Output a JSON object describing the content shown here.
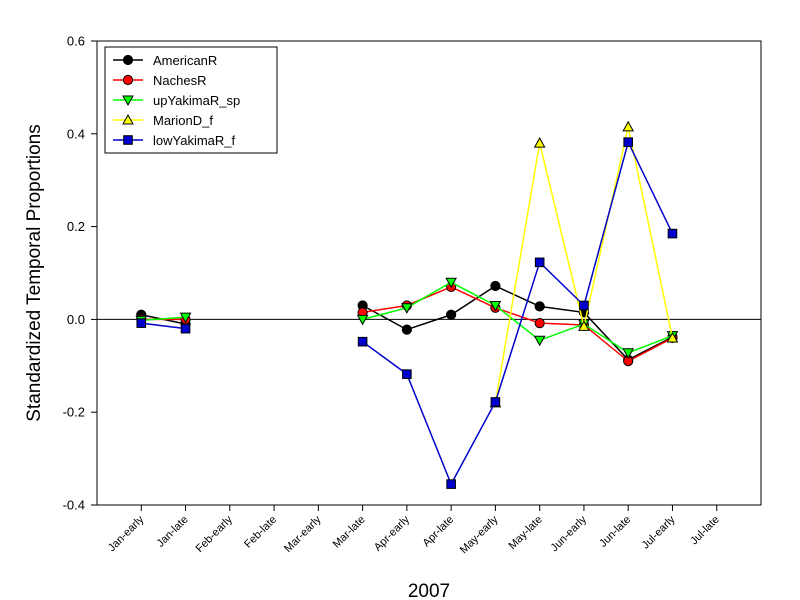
{
  "chart_data": {
    "type": "line",
    "title": "",
    "xlabel": "2007",
    "ylabel": "Standardized Temporal Proportions",
    "ylim": [
      -0.4,
      0.6
    ],
    "yticks": [
      "-0.4",
      "-0.2",
      "0.0",
      "0.2",
      "0.4",
      "0.6"
    ],
    "ytick_values": [
      -0.4,
      -0.2,
      0.0,
      0.2,
      0.4,
      0.6
    ],
    "categories": [
      "Jan-early",
      "Jan-late",
      "Feb-early",
      "Feb-late",
      "Mar-early",
      "Mar-late",
      "Apr-early",
      "Apr-late",
      "May-early",
      "May-late",
      "Jun-early",
      "Jun-late",
      "Jul-early",
      "Jul-late"
    ],
    "zero_line": true,
    "grid": false,
    "legend_position": "top-left",
    "series": [
      {
        "name": "AmericanR",
        "color": "#000000",
        "marker": "circle",
        "values": [
          0.01,
          -0.01,
          null,
          null,
          null,
          0.03,
          -0.022,
          0.01,
          0.072,
          0.028,
          0.015,
          -0.087,
          -0.038,
          null
        ]
      },
      {
        "name": "NachesR",
        "color": "#ff0000",
        "marker": "circle",
        "values": [
          0.0,
          0.0,
          null,
          null,
          null,
          0.015,
          0.03,
          0.07,
          0.025,
          -0.008,
          -0.012,
          -0.09,
          -0.04,
          null
        ]
      },
      {
        "name": "upYakimaR_sp",
        "color": "#00ff00",
        "marker": "triangle-down",
        "values": [
          -0.002,
          0.005,
          null,
          null,
          null,
          0.0,
          0.025,
          0.08,
          0.03,
          -0.045,
          -0.01,
          -0.072,
          -0.035,
          null
        ]
      },
      {
        "name": "MarionD_f",
        "color": "#ffff00",
        "marker": "triangle-up",
        "values": [
          null,
          null,
          null,
          null,
          null,
          null,
          null,
          null,
          -0.18,
          0.38,
          -0.015,
          0.415,
          -0.04,
          null
        ]
      },
      {
        "name": "lowYakimaR_f",
        "color": "#0000cc",
        "marker": "square",
        "values": [
          -0.008,
          -0.02,
          null,
          null,
          null,
          -0.048,
          -0.118,
          -0.355,
          -0.178,
          0.123,
          0.03,
          0.382,
          0.185,
          null
        ]
      }
    ]
  }
}
